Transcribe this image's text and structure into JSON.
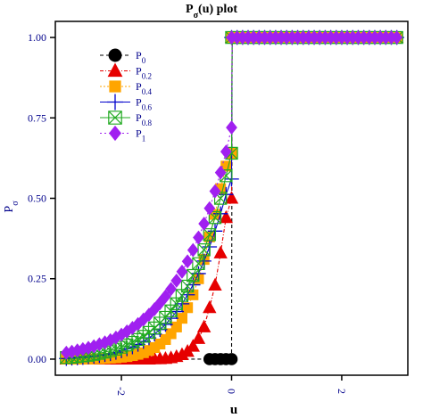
{
  "chart_data": {
    "type": "line",
    "title_main": "P",
    "title_sub": "σ",
    "title_rest": "(u)  plot",
    "xlabel": "u",
    "ylabel_main": "P",
    "ylabel_sub": "σ",
    "xlim": [
      -3.2,
      3.2
    ],
    "ylim": [
      -0.05,
      1.05
    ],
    "xticks": [
      -2,
      0,
      2
    ],
    "xtick_labels": [
      "-2",
      "0",
      "2"
    ],
    "yticks": [
      0.0,
      0.25,
      0.5,
      0.75,
      1.0
    ],
    "ytick_labels": [
      "0.00",
      "0.25",
      "0.50",
      "0.75",
      "1.00"
    ],
    "x": [
      -3.0,
      -2.9,
      -2.8,
      -2.7,
      -2.6,
      -2.5,
      -2.4,
      -2.3,
      -2.2,
      -2.1,
      -2.0,
      -1.9,
      -1.8,
      -1.7,
      -1.6,
      -1.5,
      -1.4,
      -1.3,
      -1.2,
      -1.1,
      -1.0,
      -0.9,
      -0.8,
      -0.7,
      -0.6,
      -0.5,
      -0.4,
      -0.3,
      -0.2,
      -0.1,
      0.0,
      0.1,
      0.2,
      0.3,
      0.4,
      0.5,
      0.6,
      0.7,
      0.8,
      0.9,
      1.0,
      1.1,
      1.2,
      1.3,
      1.4,
      1.5,
      1.6,
      1.7,
      1.8,
      1.9,
      2.0,
      2.1,
      2.2,
      2.3,
      2.4,
      2.5,
      2.6,
      2.7,
      2.8,
      2.9,
      3.0
    ],
    "series": [
      {
        "name_main": "P",
        "name_sub": "0",
        "color": "#000000",
        "marker": "circle",
        "dash": "4,3",
        "values_left": [
          0,
          0,
          0,
          0,
          0,
          0,
          0,
          0,
          0,
          0,
          0,
          0,
          0,
          0,
          0,
          0,
          0,
          0,
          0,
          0,
          0,
          0,
          0,
          0,
          0,
          0,
          0,
          0,
          0,
          0,
          0
        ],
        "values_right": [
          1,
          1,
          1,
          1,
          1,
          1,
          1,
          1,
          1,
          1,
          1,
          1,
          1,
          1,
          1,
          1,
          1,
          1,
          1,
          1,
          1,
          1,
          1,
          1,
          1,
          1,
          1,
          1,
          1,
          1,
          1
        ]
      },
      {
        "name_main": "P",
        "name_sub": "0.2",
        "color": "#e60000",
        "marker": "triangle",
        "dash": "4,2,1,2",
        "values_left": [
          0,
          0,
          0,
          0,
          0,
          0,
          0,
          0,
          0,
          0,
          0,
          0,
          0,
          0,
          0,
          0,
          0.001,
          0.001,
          0.002,
          0.004,
          0.008,
          0.014,
          0.024,
          0.04,
          0.064,
          0.1,
          0.16,
          0.23,
          0.33,
          0.44,
          0.5
        ],
        "values_right": [
          1,
          1,
          1,
          1,
          1,
          1,
          1,
          1,
          1,
          1,
          1,
          1,
          1,
          1,
          1,
          1,
          1,
          1,
          1,
          1,
          1,
          1,
          1,
          1,
          1,
          1,
          1,
          1,
          1,
          1,
          1
        ]
      },
      {
        "name_main": "P",
        "name_sub": "0.4",
        "color": "#ffa500",
        "marker": "square",
        "dash": "2,2",
        "values_left": [
          0,
          0,
          0,
          0,
          0,
          0.001,
          0.001,
          0.002,
          0.003,
          0.004,
          0.006,
          0.008,
          0.011,
          0.015,
          0.02,
          0.027,
          0.036,
          0.047,
          0.061,
          0.079,
          0.1,
          0.127,
          0.16,
          0.2,
          0.25,
          0.31,
          0.38,
          0.45,
          0.53,
          0.6,
          0.64
        ],
        "values_right": [
          1,
          1,
          1,
          1,
          1,
          1,
          1,
          1,
          1,
          1,
          1,
          1,
          1,
          1,
          1,
          1,
          1,
          1,
          1,
          1,
          1,
          1,
          1,
          1,
          1,
          1,
          1,
          1,
          1,
          1,
          1
        ]
      },
      {
        "name_main": "P",
        "name_sub": "0.6",
        "color": "#0000cc",
        "marker": "plus",
        "dash": "",
        "values_left": [
          0.002,
          0.003,
          0.004,
          0.005,
          0.007,
          0.009,
          0.011,
          0.014,
          0.017,
          0.021,
          0.026,
          0.032,
          0.038,
          0.046,
          0.055,
          0.066,
          0.078,
          0.092,
          0.108,
          0.127,
          0.148,
          0.172,
          0.2,
          0.231,
          0.266,
          0.305,
          0.349,
          0.398,
          0.452,
          0.512,
          0.56
        ],
        "values_right": [
          1,
          1,
          1,
          1,
          1,
          1,
          1,
          1,
          1,
          1,
          1,
          1,
          1,
          1,
          1,
          1,
          1,
          1,
          1,
          1,
          1,
          1,
          1,
          1,
          1,
          1,
          1,
          1,
          1,
          1,
          1
        ]
      },
      {
        "name_main": "P",
        "name_sub": "0.8",
        "color": "#22aa22",
        "marker": "boxx",
        "dash": "",
        "values_left": [
          0.005,
          0.006,
          0.008,
          0.01,
          0.012,
          0.015,
          0.018,
          0.022,
          0.026,
          0.031,
          0.037,
          0.044,
          0.052,
          0.061,
          0.071,
          0.083,
          0.097,
          0.112,
          0.13,
          0.15,
          0.172,
          0.198,
          0.227,
          0.26,
          0.297,
          0.34,
          0.387,
          0.44,
          0.5,
          0.57,
          0.64
        ],
        "values_right": [
          1,
          1,
          1,
          1,
          1,
          1,
          1,
          1,
          1,
          1,
          1,
          1,
          1,
          1,
          1,
          1,
          1,
          1,
          1,
          1,
          1,
          1,
          1,
          1,
          1,
          1,
          1,
          1,
          1,
          1,
          1
        ]
      },
      {
        "name_main": "P",
        "name_sub": "1",
        "color": "#a020f0",
        "marker": "diamond",
        "dash": "2,3",
        "values_left": [
          0.02,
          0.023,
          0.027,
          0.031,
          0.035,
          0.04,
          0.046,
          0.052,
          0.059,
          0.067,
          0.076,
          0.086,
          0.097,
          0.109,
          0.123,
          0.138,
          0.155,
          0.174,
          0.195,
          0.218,
          0.244,
          0.272,
          0.304,
          0.339,
          0.378,
          0.421,
          0.469,
          0.522,
          0.58,
          0.645,
          0.72
        ],
        "values_right": [
          1,
          1,
          1,
          1,
          1,
          1,
          1,
          1,
          1,
          1,
          1,
          1,
          1,
          1,
          1,
          1,
          1,
          1,
          1,
          1,
          1,
          1,
          1,
          1,
          1,
          1,
          1,
          1,
          1,
          1,
          1
        ]
      }
    ],
    "grid": false,
    "legend_position": "top-left"
  }
}
